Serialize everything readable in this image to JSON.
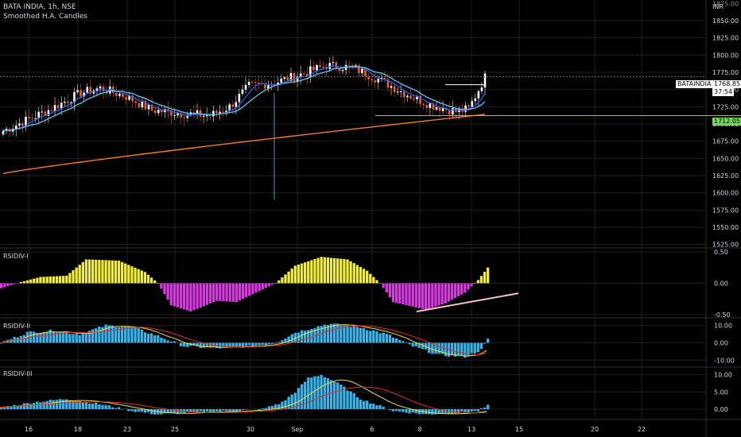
{
  "header": {
    "symbol_line": "BATA INDIA, 1h, NSE",
    "indicator": "Smoothed H.A. Candles",
    "currency": "INR"
  },
  "price_pane": {
    "current_price": "1768.85",
    "countdown": "37:54",
    "symbol_tag": "BATAINDIA",
    "level_label": "1712.05",
    "y_ticks": [
      "1850.00",
      "1825.00",
      "1800.00",
      "1775.00",
      "1750.00",
      "1725.00",
      "1700.00",
      "1675.00",
      "1650.00",
      "1625.00",
      "1600.00",
      "1575.00",
      "1550.00",
      "1525.00"
    ],
    "top_tick": "1875.00"
  },
  "panes": {
    "rsidiv1": {
      "title": "RSIDIV-I",
      "ticks": [
        "0.50",
        "0.00",
        "-0.50"
      ]
    },
    "rsidiv2": {
      "title": "RSIDIV-II",
      "ticks": [
        "10.00",
        "0.00",
        "-10.00"
      ]
    },
    "rsidiv3": {
      "title": "RSIDIV-III",
      "ticks": [
        "10.00",
        "5.00",
        "0.00"
      ]
    }
  },
  "x_axis": {
    "labels": [
      "16",
      "18",
      "23",
      "25",
      "30",
      "Sep",
      "6",
      "8",
      "13",
      "15",
      "20",
      "22"
    ]
  },
  "colors": {
    "bg": "#000000",
    "grid": "#1f1f1f",
    "up": "#ffffff",
    "down": "#f05a28",
    "ema_fast": "#2962ff",
    "ema_mid": "#5fc8f0",
    "ema_slow": "#f57c22",
    "level": "#7cd35a",
    "yellow": "#f2ef3c",
    "magenta": "#d63ae0",
    "cyan_hist": "#3ab4e8",
    "red_line": "#e0302a",
    "yellow_line": "#f0e040",
    "trend": "#f4c2c2"
  },
  "chart_data": {
    "type": "candlestick",
    "x_labels": [
      "16",
      "18",
      "23",
      "25",
      "30",
      "Sep",
      "6",
      "8",
      "13",
      "15",
      "20",
      "22"
    ],
    "price": {
      "ylim": [
        1520,
        1880
      ],
      "candles": [
        {
          "x": "16",
          "o": 1680,
          "h": 1730,
          "l": 1655,
          "c": 1715
        },
        {
          "x": "18",
          "o": 1720,
          "h": 1775,
          "l": 1715,
          "c": 1760
        },
        {
          "x": "23",
          "o": 1740,
          "h": 1750,
          "l": 1715,
          "c": 1725
        },
        {
          "x": "25",
          "o": 1722,
          "h": 1730,
          "l": 1700,
          "c": 1708
        },
        {
          "x": "30",
          "o": 1715,
          "h": 1775,
          "l": 1700,
          "c": 1765
        },
        {
          "x": "Sep",
          "o": 1760,
          "h": 1790,
          "l": 1745,
          "c": 1780
        },
        {
          "x": "6",
          "o": 1780,
          "h": 1815,
          "l": 1755,
          "c": 1765
        },
        {
          "x": "8",
          "o": 1745,
          "h": 1755,
          "l": 1715,
          "c": 1725
        },
        {
          "x": "13",
          "o": 1712,
          "h": 1775,
          "l": 1708,
          "c": 1768.85
        }
      ],
      "wick_low_30": 1590,
      "level": 1712.05,
      "last_price": 1768.85
    },
    "rsidiv1": {
      "ylim": [
        -0.55,
        0.55
      ]
    },
    "rsidiv2": {
      "ylim": [
        -14,
        14
      ]
    },
    "rsidiv3": {
      "ylim": [
        -3,
        12
      ]
    }
  }
}
